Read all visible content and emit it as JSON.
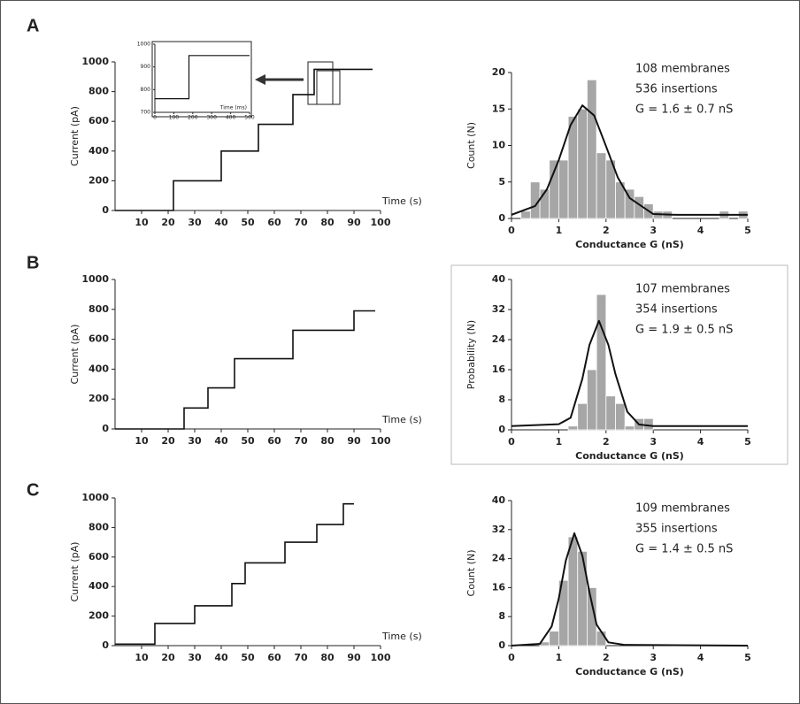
{
  "chart_data": [
    {
      "type": "line",
      "panel_label": "A",
      "xlabel": "Time (s)",
      "ylabel": "Current (pA)",
      "color": "#111111",
      "x": [
        0,
        22,
        22,
        40,
        40,
        54,
        54,
        67,
        67,
        75,
        75,
        97
      ],
      "values": [
        0,
        0,
        200,
        200,
        400,
        400,
        580,
        580,
        780,
        780,
        950,
        950
      ],
      "xlim": [
        0,
        100
      ],
      "xticks": [
        10,
        20,
        30,
        40,
        50,
        60,
        70,
        80,
        90,
        100
      ],
      "ylim": [
        0,
        1000
      ],
      "yticks": [
        0,
        200,
        400,
        600,
        800,
        1000
      ]
    },
    {
      "type": "line",
      "xlabel": "Time (ms)",
      "color": "#111111",
      "x": [
        0,
        180,
        180,
        500
      ],
      "values": [
        760,
        760,
        950,
        950
      ],
      "xlim": [
        0,
        500
      ],
      "xticks": [
        0,
        100,
        200,
        300,
        400,
        500
      ],
      "ylim": [
        700,
        1000
      ],
      "yticks": [
        700,
        800,
        900,
        1000
      ]
    },
    {
      "type": "histogram",
      "xlabel": "Conductance G (nS)",
      "ylabel": "Count (N)",
      "color": "#a6a6a6",
      "annotations": [
        "108 membranes",
        "536 insertions",
        "G = 1.6 ± 0.7 nS"
      ],
      "bins": [
        0.2,
        0.4,
        0.6,
        0.8,
        1.0,
        1.2,
        1.4,
        1.6,
        1.8,
        2.0,
        2.2,
        2.4,
        2.6,
        2.8,
        3.0,
        3.2,
        3.4,
        3.6,
        3.8,
        4.0,
        4.2,
        4.4,
        4.6,
        4.8,
        5.0
      ],
      "values": [
        1,
        5,
        4,
        8,
        8,
        14,
        15,
        19,
        9,
        8,
        5,
        4,
        3,
        2,
        1,
        1,
        0,
        0,
        0,
        0,
        0,
        1,
        0,
        1
      ],
      "fit": {
        "color": "#111111",
        "x": [
          0,
          0.5,
          0.75,
          1,
          1.25,
          1.5,
          1.75,
          2,
          2.25,
          2.5,
          3,
          3.5,
          5
        ],
        "values": [
          0.5,
          1.7,
          4.0,
          8.0,
          12.8,
          15.5,
          14.1,
          9.9,
          5.6,
          2.8,
          0.6,
          0.5,
          0.5
        ]
      },
      "xlim": [
        0,
        5
      ],
      "xticks": [
        0,
        1,
        2,
        3,
        4,
        5
      ],
      "ylim": [
        0,
        20
      ],
      "yticks": [
        0,
        5,
        10,
        15,
        20
      ]
    },
    {
      "type": "line",
      "panel_label": "B",
      "xlabel": "Time (s)",
      "ylabel": "Current (pA)",
      "color": "#111111",
      "x": [
        0,
        26,
        26,
        35,
        35,
        45,
        45,
        67,
        67,
        90,
        90,
        98
      ],
      "values": [
        0,
        0,
        140,
        140,
        275,
        275,
        470,
        470,
        660,
        660,
        790,
        790
      ],
      "xlim": [
        0,
        100
      ],
      "xticks": [
        10,
        20,
        30,
        40,
        50,
        60,
        70,
        80,
        90,
        100
      ],
      "ylim": [
        0,
        1000
      ],
      "yticks": [
        0,
        200,
        400,
        600,
        800,
        1000
      ]
    },
    {
      "type": "histogram",
      "xlabel": "Conductance G (nS)",
      "ylabel": "Probability (N)",
      "color": "#a6a6a6",
      "annotations": [
        "107 membranes",
        "354 insertions",
        "G = 1.9 ± 0.5 nS"
      ],
      "bins": [
        1.2,
        1.4,
        1.6,
        1.8,
        2.0,
        2.2,
        2.4,
        2.6,
        2.8,
        3.0
      ],
      "values": [
        1,
        7,
        16,
        36,
        9,
        7,
        1,
        3,
        3
      ],
      "fit": {
        "color": "#111111",
        "x": [
          0,
          1,
          1.25,
          1.5,
          1.65,
          1.85,
          2.05,
          2.2,
          2.45,
          2.7,
          3,
          5
        ],
        "values": [
          1,
          1.5,
          3.2,
          13.6,
          22.6,
          29,
          22.6,
          14.8,
          4.8,
          1.4,
          1,
          1
        ]
      },
      "xlim": [
        0,
        5
      ],
      "xticks": [
        0,
        1,
        2,
        3,
        4,
        5
      ],
      "ylim": [
        0,
        40
      ],
      "yticks": [
        0,
        8,
        16,
        24,
        32,
        40
      ]
    },
    {
      "type": "line",
      "panel_label": "C",
      "xlabel": "Time (s)",
      "ylabel": "Current (pA)",
      "color": "#111111",
      "x": [
        0,
        15,
        15,
        30,
        30,
        44,
        44,
        49,
        49,
        64,
        64,
        76,
        76,
        86,
        86,
        90
      ],
      "values": [
        10,
        10,
        150,
        150,
        270,
        270,
        420,
        420,
        560,
        560,
        700,
        700,
        820,
        820,
        960,
        960
      ],
      "xlim": [
        0,
        100
      ],
      "xticks": [
        10,
        20,
        30,
        40,
        50,
        60,
        70,
        80,
        90,
        100
      ],
      "ylim": [
        0,
        1000
      ],
      "yticks": [
        0,
        200,
        400,
        600,
        800,
        1000
      ]
    },
    {
      "type": "histogram",
      "xlabel": "Conductance G (nS)",
      "ylabel": "Count (N)",
      "color": "#a6a6a6",
      "annotations": [
        "109 membranes",
        "355 insertions",
        "G = 1.4 ± 0.5 nS"
      ],
      "bins": [
        0.6,
        0.8,
        1.0,
        1.2,
        1.4,
        1.6,
        1.8,
        2.0
      ],
      "values": [
        1,
        4,
        18,
        30,
        26,
        16,
        4
      ],
      "fit": {
        "color": "#111111",
        "x": [
          0,
          0.6,
          0.85,
          1.0,
          1.15,
          1.33,
          1.5,
          1.65,
          1.8,
          2.05,
          2.4,
          5
        ],
        "values": [
          0,
          0.5,
          5.3,
          13,
          23.5,
          31,
          24.8,
          14.7,
          5.8,
          0.9,
          0.2,
          0
        ]
      },
      "xlim": [
        0,
        5
      ],
      "xticks": [
        0,
        1,
        2,
        3,
        4,
        5
      ],
      "ylim": [
        0,
        40
      ],
      "yticks": [
        0,
        8,
        16,
        24,
        32,
        40
      ]
    }
  ]
}
